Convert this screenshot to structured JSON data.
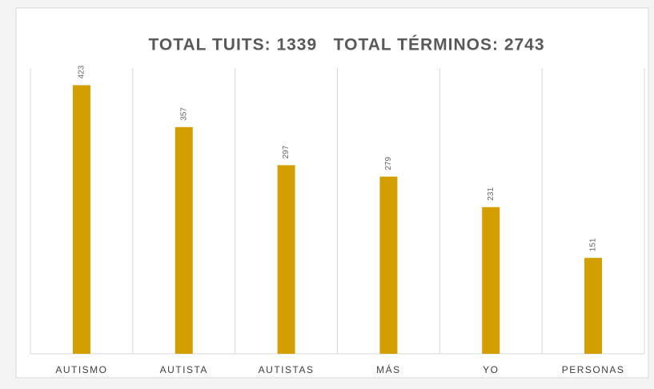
{
  "chart_data": {
    "type": "bar",
    "title": "TOTAL TUITS: 1339   TOTAL TÉRMINOS: 2743",
    "categories": [
      "AUTISMO",
      "AUTISTA",
      "AUTISTAS",
      "MÁS",
      "YO",
      "PERSONAS"
    ],
    "values": [
      423,
      357,
      297,
      279,
      231,
      151
    ],
    "color": "#d39e00",
    "ylim": [
      0,
      450
    ],
    "grid": true
  }
}
